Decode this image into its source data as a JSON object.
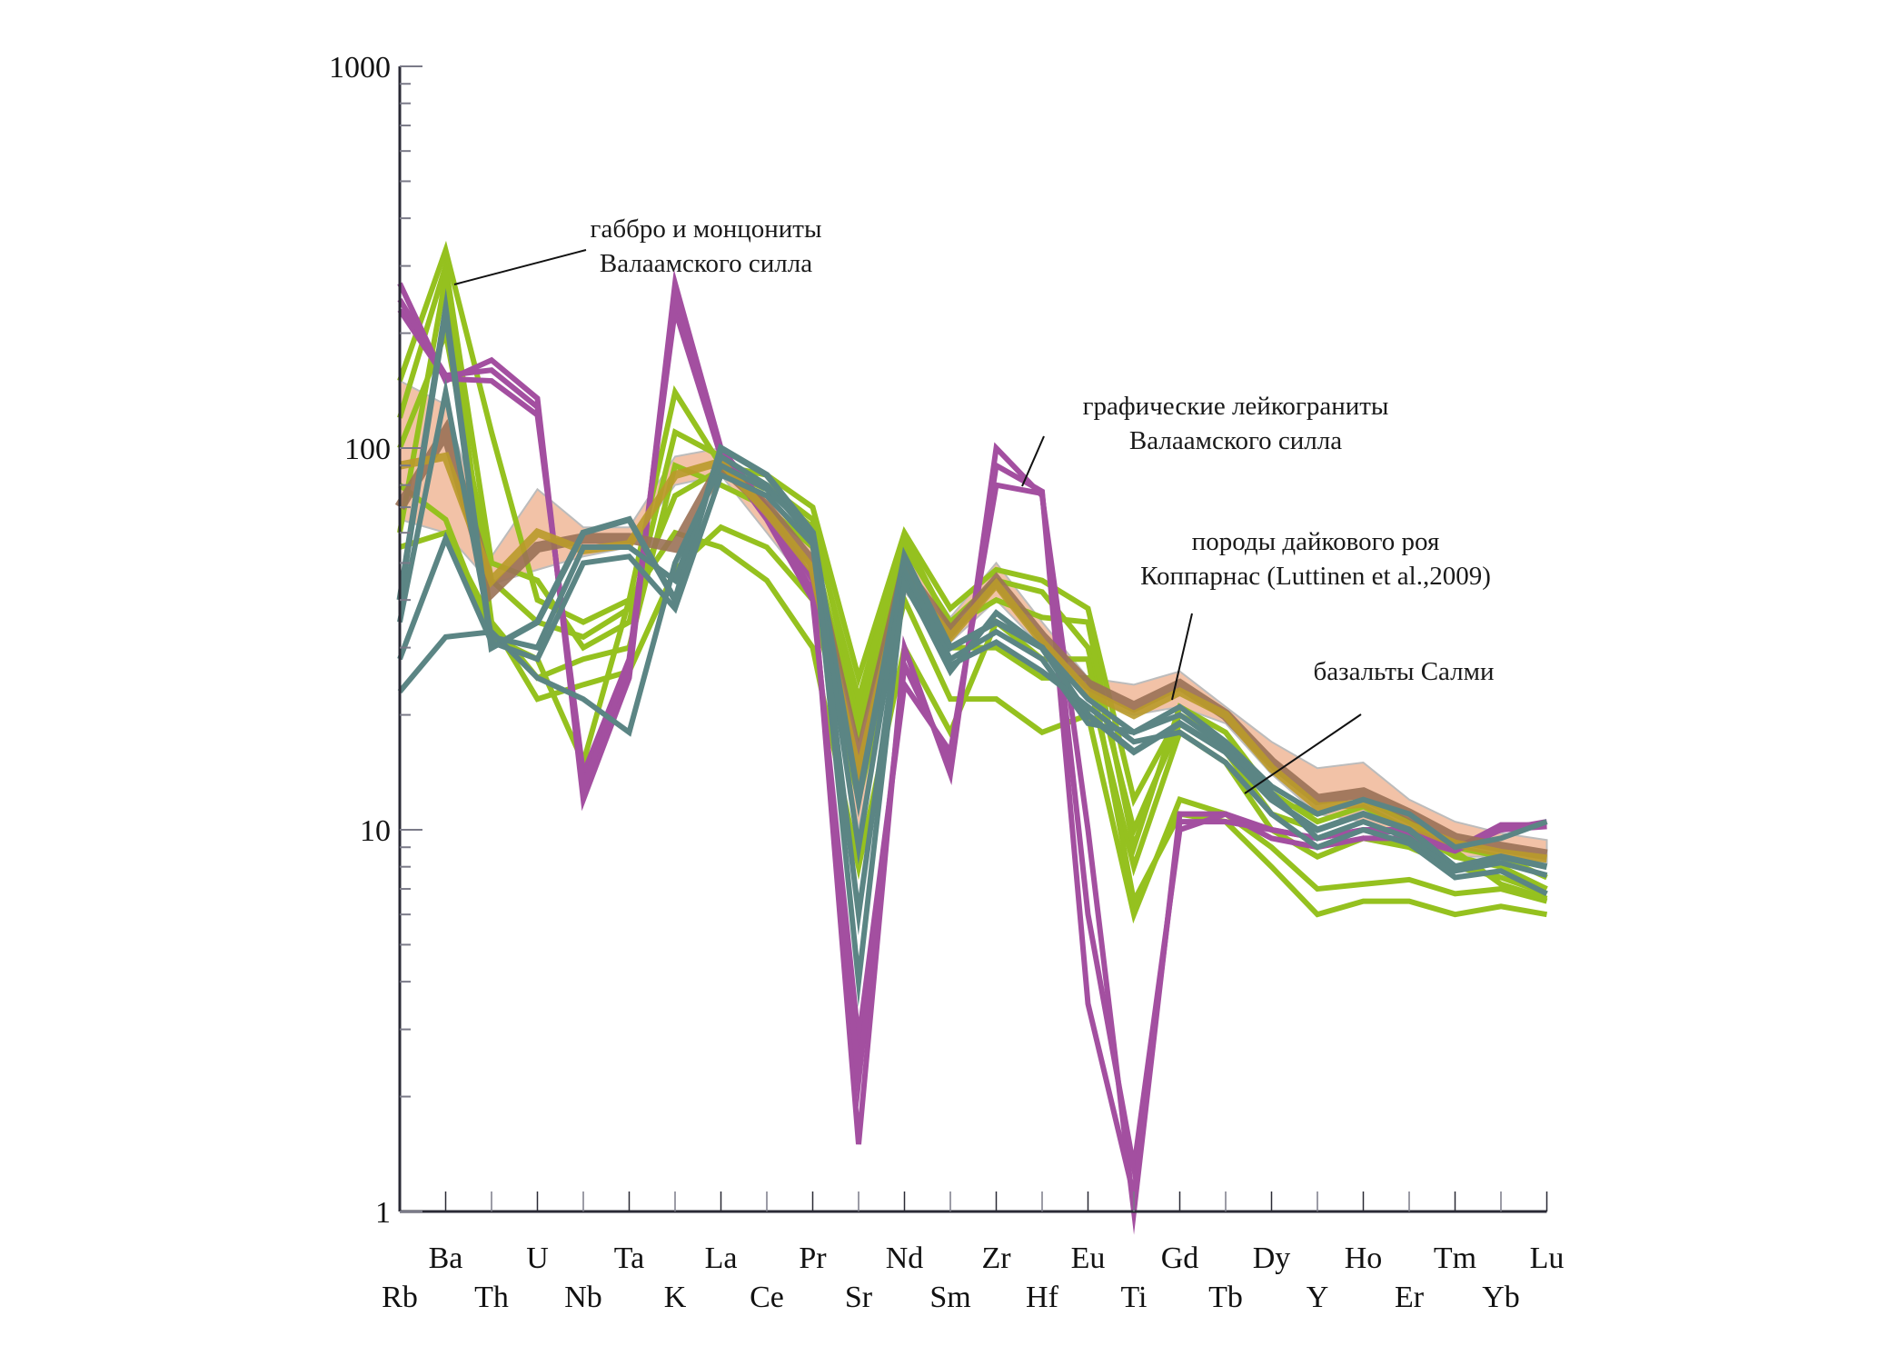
{
  "chart_data": {
    "type": "line",
    "title": "",
    "xlabel": "",
    "ylabel": "",
    "yscale": "log",
    "ylim": [
      1,
      1000
    ],
    "yticks": [
      1,
      10,
      100,
      1000
    ],
    "ytick_labels": [
      "1",
      "10",
      "100",
      "1000"
    ],
    "grid": false,
    "categories": [
      "Rb",
      "Ba",
      "Th",
      "U",
      "Nb",
      "Ta",
      "K",
      "La",
      "Ce",
      "Pr",
      "Sr",
      "Nd",
      "Sm",
      "Zr",
      "Hf",
      "Eu",
      "Ti",
      "Gd",
      "Tb",
      "Dy",
      "Y",
      "Ho",
      "Er",
      "Tm",
      "Yb",
      "Lu"
    ],
    "band": {
      "name": "породы дайкового роя Коппарнас (Luttinen et al.,2009)",
      "color": "#f2bfa3",
      "lower": [
        65,
        60,
        44,
        48,
        52,
        55,
        80,
        85,
        60,
        42,
        10,
        42,
        31,
        40,
        30,
        22,
        20,
        21,
        19,
        14,
        11,
        10.5,
        9.5,
        8.5,
        8.5,
        8.2
      ],
      "upper": [
        150,
        130,
        52,
        78,
        62,
        62,
        95,
        100,
        75,
        55,
        20,
        55,
        36,
        50,
        35,
        25,
        24,
        26,
        21,
        17,
        14.5,
        15,
        12,
        10.5,
        9.8,
        9.4
      ]
    },
    "series": [
      {
        "name": "графические лейкограниты Валаамского силла",
        "group": "leucogranite",
        "color": "#a34fa0",
        "values": [
          270,
          150,
          170,
          135,
          12,
          25,
          270,
          100,
          70,
          45,
          1.5,
          30,
          14,
          100,
          75,
          10,
          1.0,
          11,
          11,
          10,
          9.5,
          10,
          10,
          9,
          10,
          10.5
        ]
      },
      {
        "name": "графические лейкограниты Валаамского силла",
        "group": "leucogranite",
        "color": "#a34fa0",
        "values": [
          230,
          152,
          150,
          122,
          14,
          28,
          230,
          95,
          65,
          40,
          2.8,
          24,
          16,
          80,
          76,
          6,
          1.3,
          10,
          11,
          9.5,
          9,
          9.5,
          9.5,
          8.8,
          10,
          10.2
        ]
      },
      {
        "name": "графические лейкограниты Валаамского силла",
        "group": "leucogranite",
        "color": "#a34fa0",
        "values": [
          245,
          155,
          160,
          128,
          13,
          27,
          250,
          96,
          68,
          42,
          2.2,
          27,
          15,
          90,
          77,
          3.5,
          1.1,
          10.5,
          10.5,
          10,
          9.5,
          10,
          9.8,
          8.9,
          10.3,
          10.3
        ]
      },
      {
        "name": "габбро и монцониты Валаамского силла",
        "group": "gabbro",
        "color": "#95c11f",
        "values": [
          150,
          330,
          110,
          40,
          35,
          40,
          140,
          90,
          85,
          70,
          25,
          60,
          38,
          48,
          45,
          38,
          12,
          20,
          17,
          12,
          11,
          12,
          10.5,
          9,
          8.5,
          7.5
        ]
      },
      {
        "name": "габбро и монцониты Валаамского силла",
        "group": "gabbro",
        "color": "#95c11f",
        "values": [
          120,
          300,
          50,
          45,
          30,
          35,
          110,
          95,
          80,
          65,
          20,
          55,
          35,
          45,
          42,
          30,
          10,
          19,
          16,
          11,
          10,
          11,
          10,
          8.5,
          8,
          7
        ]
      },
      {
        "name": "габбро и монцониты Валаамского силла",
        "group": "gabbro",
        "color": "#95c11f",
        "values": [
          60,
          280,
          35,
          25,
          28,
          30,
          90,
          80,
          70,
          55,
          18,
          50,
          30,
          30,
          25,
          25,
          8,
          18,
          15,
          10,
          8.5,
          9.5,
          9,
          8,
          7.5,
          6.8
        ]
      },
      {
        "name": "габбро и монцониты Валаамского силла",
        "group": "gabbro",
        "color": "#95c11f",
        "values": [
          55,
          60,
          35,
          22,
          24,
          26,
          48,
          62,
          55,
          40,
          12,
          40,
          22,
          22,
          18,
          20,
          6,
          12,
          11,
          9,
          7,
          7.2,
          7.4,
          6.8,
          7,
          6.5
        ]
      },
      {
        "name": "габбро и монцониты Валаамского силла",
        "group": "gabbro",
        "color": "#95c11f",
        "values": [
          80,
          65,
          32,
          28,
          15,
          40,
          60,
          55,
          45,
          30,
          8,
          30,
          18,
          35,
          28,
          28,
          6.5,
          11,
          10.5,
          8,
          6,
          6.5,
          6.5,
          6,
          6.3,
          6
        ]
      },
      {
        "name": "габбро и монцониты Валаамского силла",
        "group": "gabbro",
        "color": "#95c11f",
        "values": [
          100,
          200,
          45,
          35,
          32,
          38,
          75,
          88,
          78,
          62,
          22,
          58,
          34,
          40,
          36,
          35,
          9,
          21,
          18,
          12.5,
          10.5,
          11.5,
          10,
          8.8,
          7.2,
          6.6
        ]
      },
      {
        "name": "базальты Салми",
        "group": "salmi",
        "color": "#5b8584",
        "values": [
          40,
          230,
          30,
          35,
          60,
          65,
          40,
          100,
          85,
          60,
          12,
          52,
          30,
          35,
          30,
          20,
          16,
          19,
          16,
          12,
          10,
          11,
          10,
          8,
          8.5,
          8
        ],
        "width": 7
      },
      {
        "name": "базальты Салми",
        "group": "salmi",
        "color": "#5b8584",
        "values": [
          35,
          140,
          32,
          30,
          55,
          55,
          45,
          95,
          80,
          58,
          9,
          48,
          28,
          33,
          28,
          19,
          18,
          20,
          16.5,
          12.5,
          9.5,
          10.5,
          9.5,
          7.8,
          8.2,
          7.6
        ]
      },
      {
        "name": "базальты Салми",
        "group": "salmi",
        "color": "#5b8584",
        "values": [
          23,
          32,
          33,
          25,
          22,
          18,
          50,
          90,
          78,
          60,
          4,
          45,
          26,
          37,
          30,
          22,
          18,
          21,
          17,
          13,
          11,
          12,
          11,
          9,
          9.5,
          10.5
        ]
      },
      {
        "name": "базальты Салми",
        "group": "salmi",
        "color": "#5b8584",
        "values": [
          28,
          58,
          31,
          28,
          50,
          52,
          38,
          85,
          75,
          56,
          6,
          44,
          27,
          31,
          26,
          21,
          17,
          18,
          15,
          11,
          9,
          10,
          9.2,
          7.5,
          7.8,
          6.8
        ]
      },
      {
        "name": "породы дайкового роя Коппарнас (Luttinen et al.,2009)",
        "group": "kopparnas",
        "color": "#9a7157",
        "values": [
          70,
          110,
          42,
          55,
          58,
          58,
          55,
          90,
          70,
          50,
          15,
          48,
          33,
          45,
          32,
          24,
          21,
          24,
          20,
          15,
          12,
          12.5,
          11,
          9.5,
          9,
          8.6
        ],
        "width": 12
      },
      {
        "name": "породы дайкового роя Коппарнас (Luttinen et al.,2009)",
        "group": "kopparnas",
        "color": "#b99a2a",
        "values": [
          90,
          95,
          45,
          60,
          54,
          56,
          85,
          92,
          68,
          48,
          14,
          46,
          32,
          44,
          31,
          23,
          20,
          23,
          20,
          14.5,
          11.5,
          11.7,
          10.3,
          9.2,
          8.7,
          8.4
        ],
        "width": 9
      }
    ],
    "annotations": [
      {
        "text": [
          "габбро и монцониты",
          "Валаамского силла"
        ],
        "points_to": "Ba"
      },
      {
        "text": [
          "графические лейкограниты",
          "Валаамского силла"
        ],
        "points_to": "Zr"
      },
      {
        "text": [
          "породы дайкового роя",
          "Коппарнас (Luttinen et al.,2009)"
        ],
        "points_to": "Ti"
      },
      {
        "text": [
          "базальты Салми"
        ],
        "points_to": "Dy"
      }
    ]
  }
}
